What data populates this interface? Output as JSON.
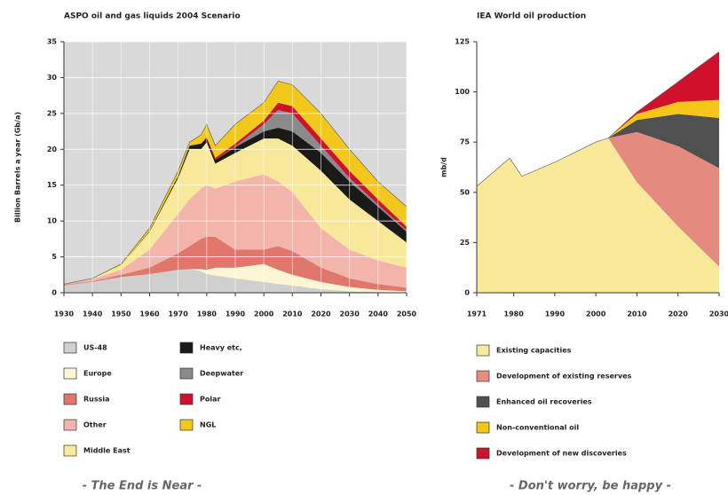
{
  "chart_data": [
    {
      "type": "stacked_area",
      "title": "ASPO oil and gas liquids 2004 Scenario",
      "y_label": "Billion Barrels a year (Gb/a)",
      "caption": "- The End is Near -",
      "x": [
        1930,
        1940,
        1950,
        1960,
        1970,
        1974,
        1978,
        1980,
        1983,
        1990,
        2000,
        2005,
        2010,
        2020,
        2030,
        2040,
        2050
      ],
      "series": [
        {
          "name": "US-48",
          "color": "#cfcfcf",
          "values": [
            1.0,
            1.5,
            2.2,
            2.6,
            3.2,
            3.3,
            3.0,
            2.6,
            2.4,
            2.0,
            1.5,
            1.2,
            1.0,
            0.5,
            0.2,
            0.1,
            0
          ]
        },
        {
          "name": "Europe",
          "color": "#fdf6d4",
          "values": [
            0,
            0,
            0,
            0,
            0,
            0,
            0.3,
            0.6,
            1.1,
            1.5,
            2.5,
            2.0,
            1.5,
            1.0,
            0.6,
            0.3,
            0.2
          ]
        },
        {
          "name": "Russia",
          "color": "#e0776a",
          "values": [
            0.1,
            0.1,
            0.3,
            0.9,
            2.3,
            3.2,
            4.2,
            4.6,
            4.3,
            2.5,
            2.0,
            3.3,
            3.3,
            2.0,
            1.2,
            0.8,
            0.5
          ]
        },
        {
          "name": "Other",
          "color": "#f2b4ab",
          "values": [
            0.1,
            0.3,
            0.7,
            2.5,
            5.5,
            6.5,
            7.0,
            7.2,
            6.7,
            9.5,
            10.5,
            9.0,
            8.2,
            5.5,
            4.0,
            3.3,
            2.8
          ]
        },
        {
          "name": "Middle East",
          "color": "#f8e89a",
          "values": [
            0,
            0.1,
            0.6,
            2.5,
            5,
            7,
            5.5,
            6,
            3.5,
            4,
            5,
            6,
            6.5,
            8,
            7,
            5.5,
            3.5
          ]
        },
        {
          "name": "Heavy etc,",
          "color": "#1a1a1a",
          "values": [
            0,
            0,
            0,
            0.1,
            0.3,
            0.5,
            0.8,
            0.5,
            0.5,
            0.8,
            1.0,
            1.5,
            2.0,
            2.5,
            2.5,
            2.0,
            1.5
          ]
        },
        {
          "name": "Deepwater",
          "color": "#8a8a8a",
          "values": [
            0,
            0,
            0,
            0,
            0,
            0,
            0,
            0,
            0,
            0.1,
            1.0,
            2.5,
            2.5,
            1.0,
            0.5,
            0.3,
            0.2
          ]
        },
        {
          "name": "Polar",
          "color": "#d0112b",
          "values": [
            0,
            0,
            0,
            0,
            0,
            0,
            0,
            0.2,
            0.3,
            0.4,
            0.5,
            1.0,
            1.0,
            1.0,
            1.0,
            0.7,
            0.5
          ]
        },
        {
          "name": "NGL",
          "color": "#f2c81c",
          "values": [
            0,
            0,
            0.2,
            0.4,
            0.7,
            0.5,
            1.2,
            1.8,
            1.7,
            2.7,
            2.5,
            3.0,
            3.0,
            3.5,
            3.0,
            2.5,
            2.8
          ]
        }
      ],
      "xlim": [
        1930,
        2050
      ],
      "xticks": [
        1930,
        1940,
        1950,
        1960,
        1970,
        1980,
        1990,
        2000,
        2010,
        2020,
        2030,
        2040,
        2050
      ],
      "ylim": [
        0,
        35
      ],
      "yticks": [
        0,
        5,
        10,
        15,
        20,
        25,
        30,
        35
      ],
      "grid": true,
      "plot_background": "#d9d9d9"
    },
    {
      "type": "stacked_area",
      "title": "IEA World oil production",
      "y_label": "mb/d",
      "caption": "- Don't worry, be happy -",
      "x": [
        1971,
        1975,
        1979,
        1982,
        1990,
        2000,
        2003,
        2010,
        2020,
        2030
      ],
      "series": [
        {
          "name": "Existing capacities",
          "color": "#f8e89a",
          "values": [
            53,
            60,
            67,
            58,
            65,
            75,
            77,
            55,
            33,
            13
          ]
        },
        {
          "name": "Development of existing reserves",
          "color": "#e58a7e",
          "values": [
            0,
            0,
            0,
            0,
            0,
            0,
            0,
            25,
            40,
            49
          ]
        },
        {
          "name": "Enhanced oil recoveries",
          "color": "#505050",
          "values": [
            0,
            0,
            0,
            0,
            0,
            0,
            0,
            6,
            16,
            25
          ]
        },
        {
          "name": "Non-conventional oil",
          "color": "#f5c518",
          "values": [
            0,
            0,
            0,
            0,
            0,
            0,
            0,
            3,
            6,
            9
          ]
        },
        {
          "name": "Development of new discoveries",
          "color": "#d0112b",
          "values": [
            0,
            0,
            0,
            0,
            0,
            0,
            0,
            1,
            10,
            24
          ]
        }
      ],
      "xlim": [
        1971,
        2030
      ],
      "xticks": [
        1971,
        1980,
        1990,
        2000,
        2010,
        2020,
        2030
      ],
      "ylim": [
        0,
        125
      ],
      "yticks": [
        0,
        25,
        50,
        75,
        100,
        125
      ],
      "grid": false,
      "plot_background": "#ffffff"
    }
  ]
}
